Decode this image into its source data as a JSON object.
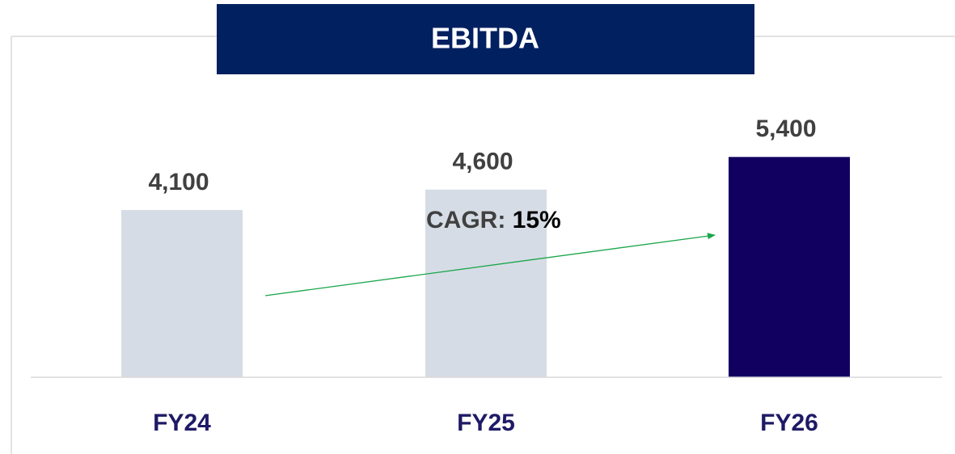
{
  "chart_data": {
    "type": "bar",
    "title": "EBITDA",
    "categories": [
      "FY24",
      "FY25",
      "FY26"
    ],
    "values": [
      4100,
      4600,
      5400
    ],
    "value_labels": [
      "4,100",
      "4,600",
      "5,400"
    ],
    "colors": [
      "#d6dce5",
      "#d6dce5",
      "#120060"
    ],
    "ylim": [
      0,
      6000
    ],
    "annotation": {
      "label": "CAGR:",
      "value": "15%"
    }
  }
}
